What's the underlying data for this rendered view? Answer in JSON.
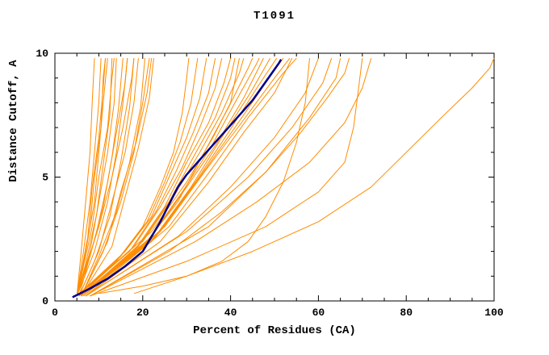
{
  "title": "T1091",
  "chart_data": {
    "type": "line",
    "title": "T1091",
    "xlabel": "Percent of Residues (CA)",
    "ylabel": "Distance Cutoff, A",
    "xlim": [
      0,
      100
    ],
    "ylim": [
      0,
      10
    ],
    "x_major_ticks": [
      0,
      20,
      40,
      60,
      80,
      100
    ],
    "x_minor_step": 5,
    "y_major_ticks": [
      0,
      5,
      10
    ],
    "y_minor_step": 1,
    "grid": false,
    "legend": "none",
    "colors": {
      "model": "#ff8c00",
      "reference": "#00008b",
      "axis": "#000000",
      "background": "#ffffff"
    },
    "model_curves": [
      [
        [
          5,
          0.2
        ],
        [
          6,
          2
        ],
        [
          7,
          4
        ],
        [
          8,
          6
        ],
        [
          8.5,
          8
        ],
        [
          9,
          9.8
        ]
      ],
      [
        [
          5,
          0.2
        ],
        [
          6.5,
          2
        ],
        [
          8,
          4
        ],
        [
          9,
          6
        ],
        [
          10,
          8
        ],
        [
          10.5,
          9.8
        ]
      ],
      [
        [
          5,
          0.2
        ],
        [
          7,
          2
        ],
        [
          9,
          4
        ],
        [
          10,
          6
        ],
        [
          11,
          8
        ],
        [
          12,
          9.8
        ]
      ],
      [
        [
          5,
          0.2
        ],
        [
          7,
          1.5
        ],
        [
          9.5,
          3.5
        ],
        [
          11,
          5.5
        ],
        [
          12.5,
          7.5
        ],
        [
          13,
          9.8
        ]
      ],
      [
        [
          5,
          0.2
        ],
        [
          8,
          2
        ],
        [
          10,
          4
        ],
        [
          12,
          6
        ],
        [
          13.5,
          8
        ],
        [
          14,
          9.8
        ]
      ],
      [
        [
          5,
          0.2
        ],
        [
          8,
          1.8
        ],
        [
          11,
          3.8
        ],
        [
          13,
          5.8
        ],
        [
          14.5,
          7.8
        ],
        [
          15.5,
          9.8
        ]
      ],
      [
        [
          5,
          0.2
        ],
        [
          9,
          2
        ],
        [
          12,
          4
        ],
        [
          14,
          6
        ],
        [
          15.5,
          8
        ],
        [
          16.5,
          9.8
        ]
      ],
      [
        [
          5.5,
          0.2
        ],
        [
          9,
          1.6
        ],
        [
          12.5,
          3.4
        ],
        [
          15,
          5.6
        ],
        [
          17,
          7.8
        ],
        [
          18,
          9.8
        ]
      ],
      [
        [
          5.5,
          0.2
        ],
        [
          10,
          2
        ],
        [
          13,
          4
        ],
        [
          16,
          6
        ],
        [
          18,
          8
        ],
        [
          19,
          9.8
        ]
      ],
      [
        [
          6,
          0.2
        ],
        [
          10,
          1.8
        ],
        [
          14,
          3.6
        ],
        [
          17,
          5.6
        ],
        [
          19.5,
          7.8
        ],
        [
          20.5,
          9.8
        ]
      ],
      [
        [
          6,
          0.2
        ],
        [
          11,
          2
        ],
        [
          15,
          4
        ],
        [
          18,
          6
        ],
        [
          20,
          8
        ],
        [
          21.5,
          9.8
        ]
      ],
      [
        [
          6,
          0.2
        ],
        [
          12,
          2.4
        ],
        [
          15,
          4.4
        ],
        [
          18.5,
          6.4
        ],
        [
          21,
          8.4
        ],
        [
          22,
          9.8
        ]
      ],
      [
        [
          5,
          0.2
        ],
        [
          6,
          1
        ],
        [
          8,
          3
        ],
        [
          9,
          5
        ],
        [
          10.5,
          7
        ],
        [
          11,
          9
        ],
        [
          11.5,
          9.8
        ]
      ],
      [
        [
          5,
          0.2
        ],
        [
          7.5,
          2.6
        ],
        [
          8.5,
          4.6
        ],
        [
          10,
          6.6
        ],
        [
          11,
          8.6
        ],
        [
          11.5,
          9.8
        ]
      ],
      [
        [
          5,
          0.2
        ],
        [
          8.5,
          3
        ],
        [
          10,
          5
        ],
        [
          12,
          7
        ],
        [
          13,
          9
        ],
        [
          13.5,
          9.8
        ]
      ],
      [
        [
          5.5,
          0.2
        ],
        [
          9.5,
          2.8
        ],
        [
          12,
          4.8
        ],
        [
          14,
          6.8
        ],
        [
          16,
          8.8
        ],
        [
          16.5,
          9.8
        ]
      ],
      [
        [
          6,
          0.2
        ],
        [
          13,
          2.2
        ],
        [
          16,
          4.2
        ],
        [
          19,
          6.2
        ],
        [
          21.5,
          8.2
        ],
        [
          22.5,
          9.8
        ]
      ],
      [
        [
          5,
          0.2
        ],
        [
          10,
          3
        ],
        [
          13,
          5
        ],
        [
          15.5,
          7
        ],
        [
          17.5,
          9
        ],
        [
          18,
          9.8
        ]
      ],
      [
        [
          5,
          0.2
        ],
        [
          14,
          1.6
        ],
        [
          20,
          3
        ],
        [
          24,
          4.6
        ],
        [
          27,
          6
        ],
        [
          29,
          7.6
        ],
        [
          30,
          9
        ],
        [
          30.5,
          9.8
        ]
      ],
      [
        [
          5,
          0.2
        ],
        [
          15,
          1.8
        ],
        [
          21,
          3.2
        ],
        [
          25,
          4.8
        ],
        [
          28.5,
          6.4
        ],
        [
          31,
          8
        ],
        [
          32.5,
          9.8
        ]
      ],
      [
        [
          5,
          0.2
        ],
        [
          16,
          2
        ],
        [
          22,
          3.4
        ],
        [
          26,
          5
        ],
        [
          30,
          6.6
        ],
        [
          33,
          8.2
        ],
        [
          34.5,
          9.8
        ]
      ],
      [
        [
          5,
          0.2
        ],
        [
          17,
          2
        ],
        [
          23,
          3.6
        ],
        [
          27.5,
          5.2
        ],
        [
          31.5,
          6.8
        ],
        [
          35,
          8.4
        ],
        [
          36.5,
          9.8
        ]
      ],
      [
        [
          5.5,
          0.2
        ],
        [
          18,
          2.2
        ],
        [
          24,
          3.8
        ],
        [
          29,
          5.4
        ],
        [
          33,
          7
        ],
        [
          36.5,
          8.6
        ],
        [
          38,
          9.8
        ]
      ],
      [
        [
          5.5,
          0.2
        ],
        [
          18,
          2
        ],
        [
          25,
          3.8
        ],
        [
          30,
          5.6
        ],
        [
          35,
          7.2
        ],
        [
          38.5,
          8.8
        ],
        [
          40,
          9.8
        ]
      ],
      [
        [
          6,
          0.2
        ],
        [
          19,
          2.2
        ],
        [
          26,
          4
        ],
        [
          31.5,
          5.8
        ],
        [
          36.5,
          7.4
        ],
        [
          40,
          9
        ],
        [
          41,
          9.8
        ]
      ],
      [
        [
          6,
          0.2
        ],
        [
          20,
          2.4
        ],
        [
          27,
          4.2
        ],
        [
          33,
          6
        ],
        [
          38,
          7.6
        ],
        [
          42,
          9.2
        ],
        [
          43,
          9.8
        ]
      ],
      [
        [
          6,
          0.2
        ],
        [
          20,
          2.2
        ],
        [
          28,
          4
        ],
        [
          34,
          6
        ],
        [
          39.5,
          7.8
        ],
        [
          44,
          9.4
        ],
        [
          45,
          9.8
        ]
      ],
      [
        [
          6,
          0.2
        ],
        [
          21,
          2.4
        ],
        [
          29,
          4.4
        ],
        [
          35.5,
          6.2
        ],
        [
          41,
          8
        ],
        [
          46,
          9.6
        ],
        [
          46.5,
          9.8
        ]
      ],
      [
        [
          6,
          0.2
        ],
        [
          22,
          2.6
        ],
        [
          30,
          4.6
        ],
        [
          37,
          6.4
        ],
        [
          43,
          8.2
        ],
        [
          47.5,
          9.8
        ]
      ],
      [
        [
          6,
          0.2
        ],
        [
          22,
          2.4
        ],
        [
          31,
          4.6
        ],
        [
          38,
          6.6
        ],
        [
          44.5,
          8.4
        ],
        [
          49,
          9.8
        ]
      ],
      [
        [
          6.5,
          0.2
        ],
        [
          23,
          2.6
        ],
        [
          32,
          4.8
        ],
        [
          39.5,
          6.8
        ],
        [
          46,
          8.6
        ],
        [
          50.5,
          9.8
        ]
      ],
      [
        [
          6.5,
          0.2
        ],
        [
          24,
          2.8
        ],
        [
          33,
          5
        ],
        [
          41,
          7
        ],
        [
          48,
          8.8
        ],
        [
          52,
          9.8
        ]
      ],
      [
        [
          6.5,
          0.2
        ],
        [
          25,
          3
        ],
        [
          34,
          5.2
        ],
        [
          42.5,
          7.2
        ],
        [
          50,
          9
        ],
        [
          53.5,
          9.8
        ]
      ],
      [
        [
          7,
          0.2
        ],
        [
          26,
          3
        ],
        [
          36,
          5.4
        ],
        [
          44,
          7.4
        ],
        [
          52,
          9.2
        ],
        [
          55,
          9.8
        ]
      ],
      [
        [
          7,
          0.2
        ],
        [
          24,
          2.4
        ],
        [
          35,
          4.8
        ],
        [
          43,
          6.8
        ],
        [
          50,
          8.4
        ],
        [
          54,
          9.8
        ]
      ],
      [
        [
          5,
          0.2
        ],
        [
          13,
          1.4
        ],
        [
          22,
          2.8
        ],
        [
          30,
          4.8
        ],
        [
          36,
          6.6
        ],
        [
          40,
          8
        ],
        [
          42,
          9.8
        ]
      ],
      [
        [
          7,
          0.2
        ],
        [
          28,
          2.6
        ],
        [
          40,
          4.6
        ],
        [
          50,
          6.6
        ],
        [
          57,
          8.4
        ],
        [
          60,
          9.8
        ]
      ],
      [
        [
          7,
          0.2
        ],
        [
          30,
          2.8
        ],
        [
          44,
          5
        ],
        [
          54,
          7
        ],
        [
          61,
          8.8
        ],
        [
          63,
          9.8
        ]
      ],
      [
        [
          8,
          0.2
        ],
        [
          35,
          3
        ],
        [
          48,
          5.2
        ],
        [
          58,
          7.4
        ],
        [
          64,
          9
        ],
        [
          65,
          9.8
        ]
      ],
      [
        [
          8,
          0.2
        ],
        [
          30,
          1.6
        ],
        [
          48,
          3
        ],
        [
          60,
          4.4
        ],
        [
          66,
          5.6
        ],
        [
          68,
          7
        ],
        [
          69,
          8.4
        ],
        [
          70,
          9.8
        ]
      ],
      [
        [
          8,
          0.2
        ],
        [
          26,
          2
        ],
        [
          38,
          3.6
        ],
        [
          48,
          5.2
        ],
        [
          56,
          6.8
        ],
        [
          62,
          8.2
        ],
        [
          66,
          9.2
        ],
        [
          67,
          9.8
        ]
      ],
      [
        [
          10,
          0.3
        ],
        [
          20,
          0.6
        ],
        [
          30,
          1
        ],
        [
          38,
          1.6
        ],
        [
          44,
          2.4
        ],
        [
          48,
          3.4
        ],
        [
          52,
          4.8
        ],
        [
          55,
          6.4
        ],
        [
          57,
          8
        ],
        [
          58,
          9.8
        ]
      ],
      [
        [
          8,
          0.2
        ],
        [
          32,
          2.4
        ],
        [
          46,
          4
        ],
        [
          58,
          5.6
        ],
        [
          66,
          7.2
        ],
        [
          70,
          8.6
        ],
        [
          72,
          9.8
        ]
      ],
      [
        [
          18,
          0.3
        ],
        [
          30,
          1
        ],
        [
          45,
          2
        ],
        [
          60,
          3.2
        ],
        [
          72,
          4.6
        ],
        [
          80,
          6
        ],
        [
          88,
          7.4
        ],
        [
          95,
          8.6
        ],
        [
          99,
          9.4
        ],
        [
          100,
          9.8
        ]
      ]
    ],
    "reference_curve": [
      [
        4,
        0.15
      ],
      [
        8,
        0.5
      ],
      [
        12,
        0.9
      ],
      [
        16,
        1.4
      ],
      [
        20,
        2
      ],
      [
        22,
        2.6
      ],
      [
        24,
        3.2
      ],
      [
        26,
        3.9
      ],
      [
        28,
        4.6
      ],
      [
        30,
        5.1
      ],
      [
        33,
        5.7
      ],
      [
        36,
        6.3
      ],
      [
        39,
        6.9
      ],
      [
        42,
        7.5
      ],
      [
        45,
        8.1
      ],
      [
        47,
        8.6
      ],
      [
        49,
        9.1
      ],
      [
        51,
        9.6
      ],
      [
        51.5,
        9.75
      ]
    ]
  }
}
